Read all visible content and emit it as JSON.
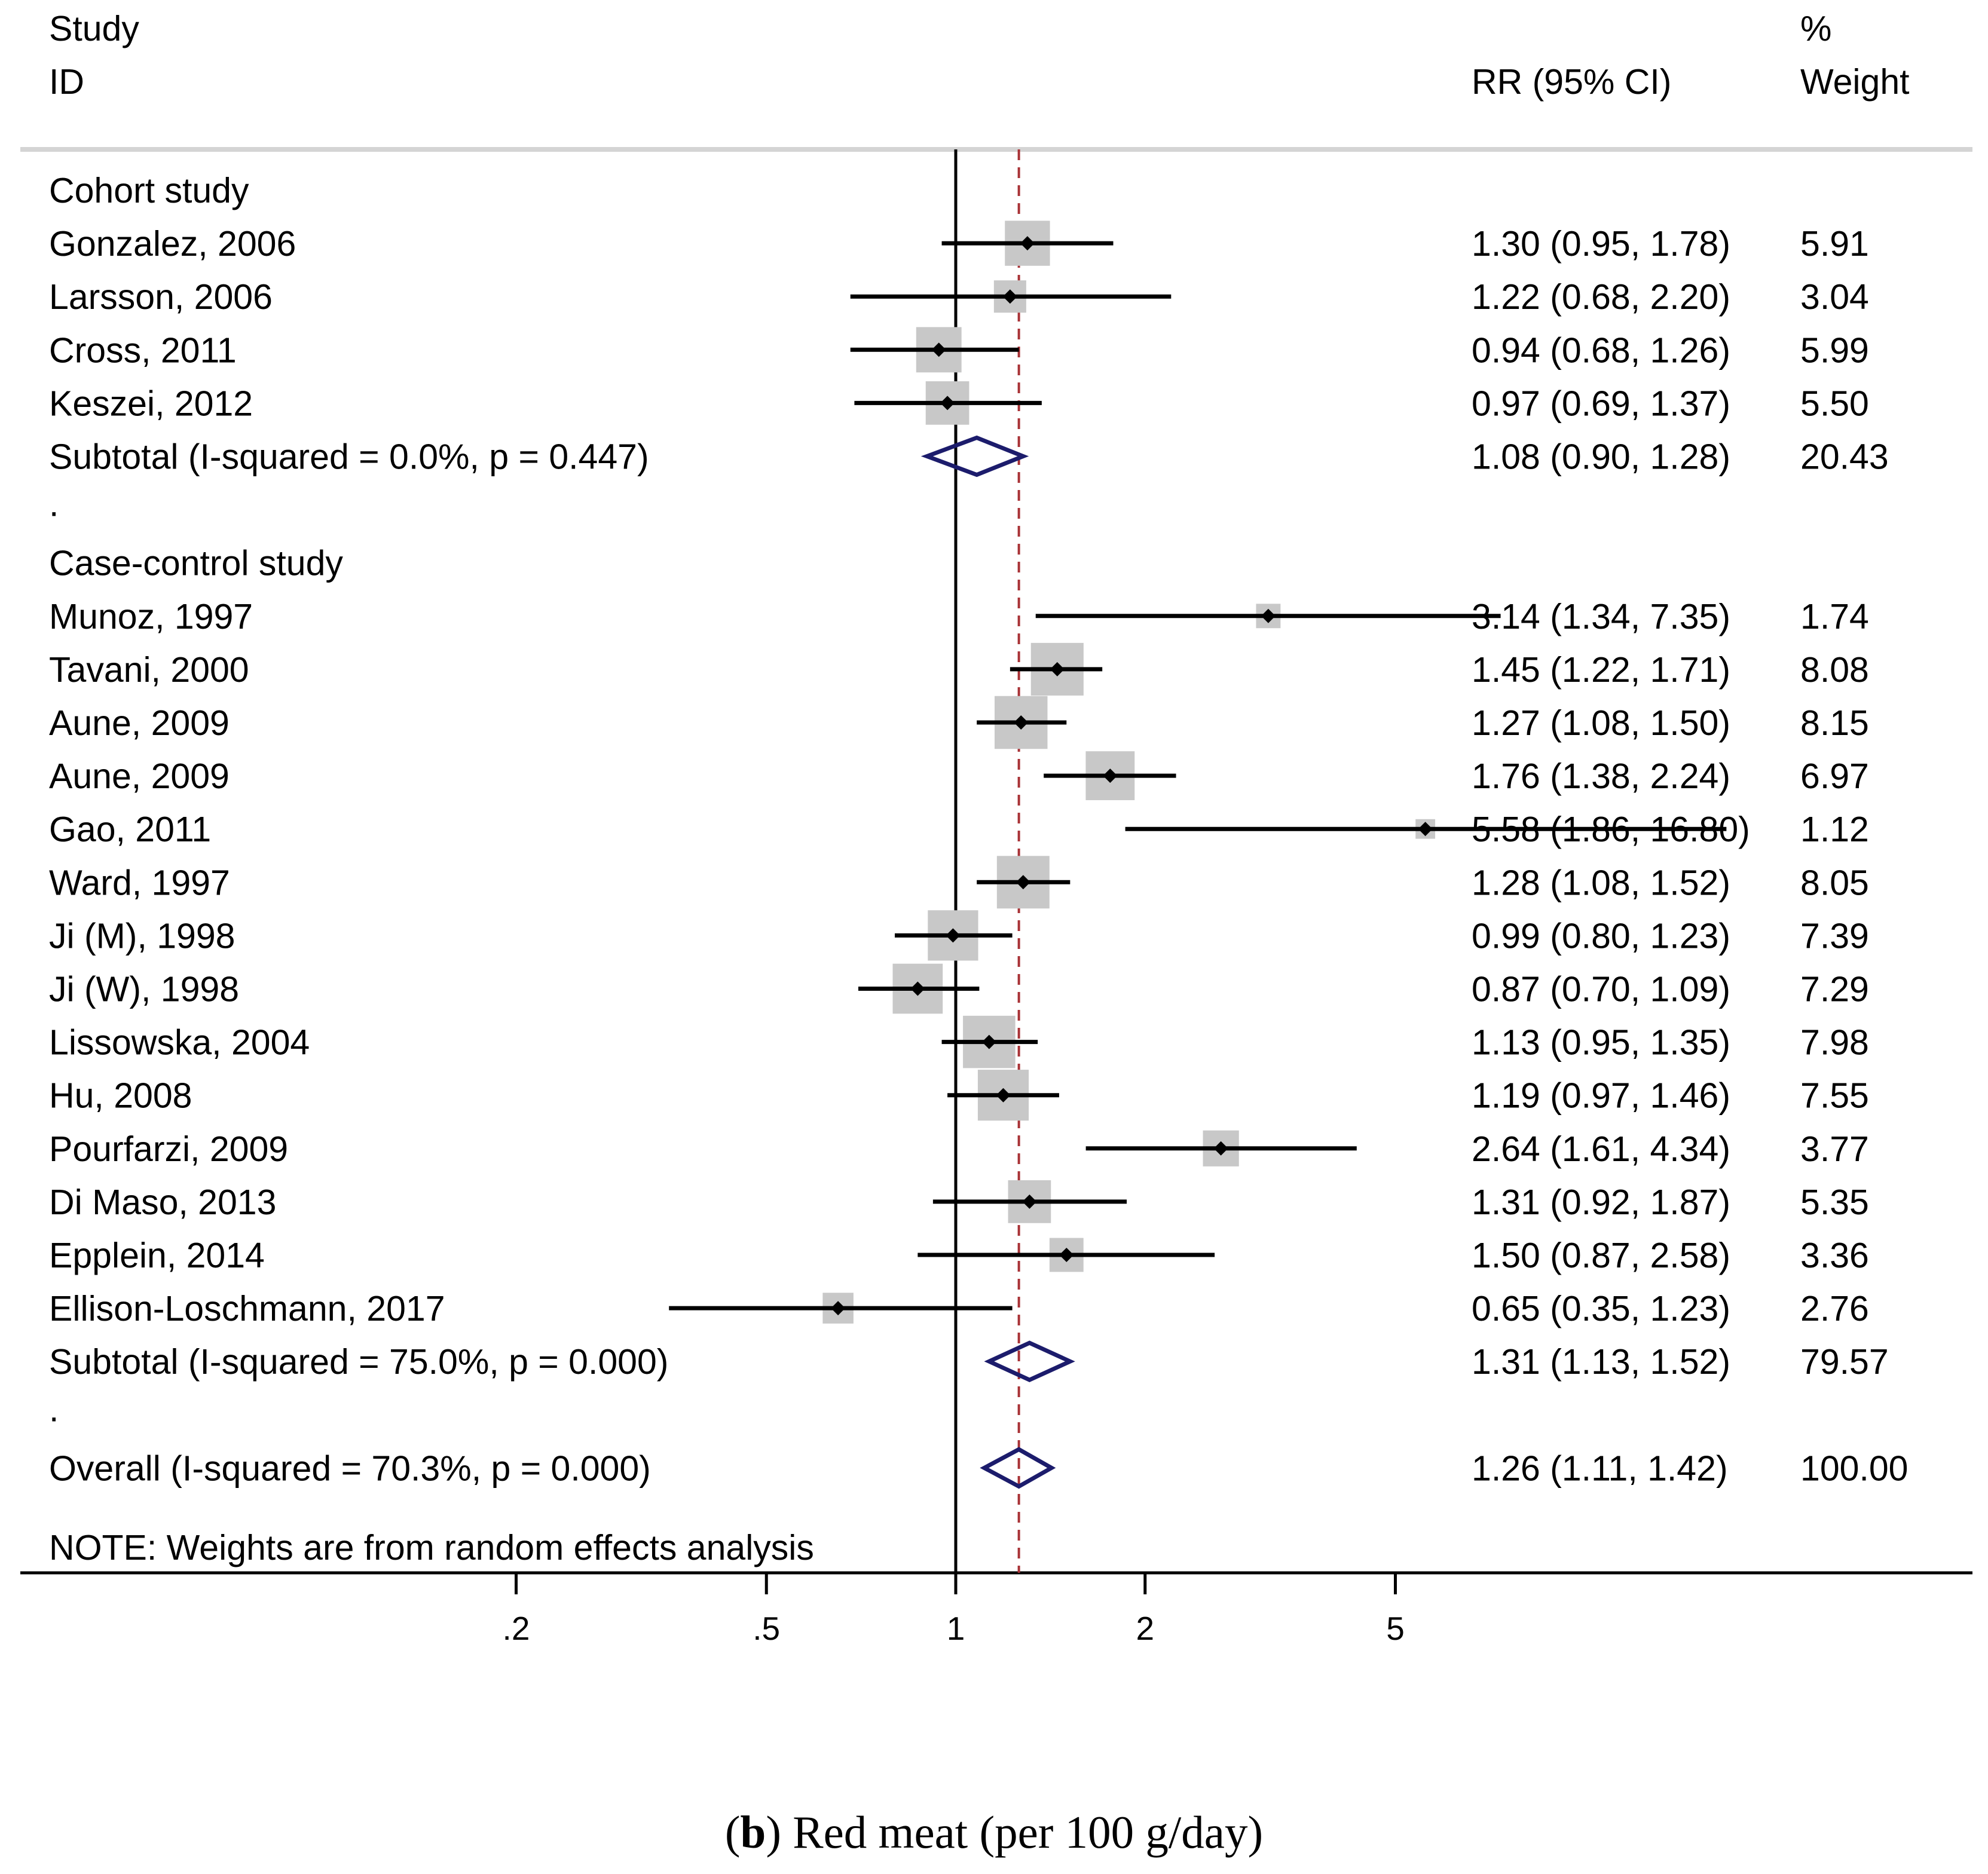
{
  "chart_data": {
    "type": "forest",
    "header": {
      "study_line1": "Study",
      "study_line2": "ID",
      "rr": "RR (95% CI)",
      "weight_line1": "%",
      "weight_line2": "Weight"
    },
    "x_scale": "log",
    "x_ticks": [
      {
        "value": 0.2,
        "label": ".2"
      },
      {
        "value": 0.5,
        "label": ".5"
      },
      {
        "value": 1,
        "label": "1"
      },
      {
        "value": 2,
        "label": "2"
      },
      {
        "value": 5,
        "label": "5"
      }
    ],
    "null_line": 1,
    "overall_line": 1.26,
    "rows": [
      {
        "kind": "group",
        "label": "Cohort study"
      },
      {
        "kind": "study",
        "label": "Gonzalez, 2006",
        "rr": 1.3,
        "lo": 0.95,
        "hi": 1.78,
        "ci_text": "1.30 (0.95, 1.78)",
        "weight": "5.91"
      },
      {
        "kind": "study",
        "label": "Larsson, 2006",
        "rr": 1.22,
        "lo": 0.68,
        "hi": 2.2,
        "ci_text": "1.22 (0.68, 2.20)",
        "weight": "3.04"
      },
      {
        "kind": "study",
        "label": "Cross, 2011",
        "rr": 0.94,
        "lo": 0.68,
        "hi": 1.26,
        "ci_text": "0.94 (0.68, 1.26)",
        "weight": "5.99"
      },
      {
        "kind": "study",
        "label": "Keszei, 2012",
        "rr": 0.97,
        "lo": 0.69,
        "hi": 1.37,
        "ci_text": "0.97 (0.69, 1.37)",
        "weight": "5.50"
      },
      {
        "kind": "subtotal",
        "label": "Subtotal  (I-squared = 0.0%, p = 0.447)",
        "rr": 1.08,
        "lo": 0.9,
        "hi": 1.28,
        "ci_text": "1.08 (0.90, 1.28)",
        "weight": "20.43"
      },
      {
        "kind": "spacer",
        "label": "."
      },
      {
        "kind": "group",
        "label": "Case-control study"
      },
      {
        "kind": "study",
        "label": "Munoz, 1997",
        "rr": 3.14,
        "lo": 1.34,
        "hi": 7.35,
        "ci_text": "3.14 (1.34, 7.35)",
        "weight": "1.74"
      },
      {
        "kind": "study",
        "label": "Tavani, 2000",
        "rr": 1.45,
        "lo": 1.22,
        "hi": 1.71,
        "ci_text": "1.45 (1.22, 1.71)",
        "weight": "8.08"
      },
      {
        "kind": "study",
        "label": "Aune, 2009",
        "rr": 1.27,
        "lo": 1.08,
        "hi": 1.5,
        "ci_text": "1.27 (1.08, 1.50)",
        "weight": "8.15"
      },
      {
        "kind": "study",
        "label": "Aune, 2009",
        "rr": 1.76,
        "lo": 1.38,
        "hi": 2.24,
        "ci_text": "1.76 (1.38, 2.24)",
        "weight": "6.97"
      },
      {
        "kind": "study",
        "label": "Gao, 2011",
        "rr": 5.58,
        "lo": 1.86,
        "hi": 16.8,
        "ci_text": "5.58 (1.86, 16.80)",
        "weight": "1.12"
      },
      {
        "kind": "study",
        "label": "Ward, 1997",
        "rr": 1.28,
        "lo": 1.08,
        "hi": 1.52,
        "ci_text": "1.28 (1.08, 1.52)",
        "weight": "8.05"
      },
      {
        "kind": "study",
        "label": "Ji (M), 1998",
        "rr": 0.99,
        "lo": 0.8,
        "hi": 1.23,
        "ci_text": "0.99 (0.80, 1.23)",
        "weight": "7.39"
      },
      {
        "kind": "study",
        "label": "Ji (W), 1998",
        "rr": 0.87,
        "lo": 0.7,
        "hi": 1.09,
        "ci_text": "0.87 (0.70, 1.09)",
        "weight": "7.29"
      },
      {
        "kind": "study",
        "label": "Lissowska, 2004",
        "rr": 1.13,
        "lo": 0.95,
        "hi": 1.35,
        "ci_text": "1.13 (0.95, 1.35)",
        "weight": "7.98"
      },
      {
        "kind": "study",
        "label": "Hu, 2008",
        "rr": 1.19,
        "lo": 0.97,
        "hi": 1.46,
        "ci_text": "1.19 (0.97, 1.46)",
        "weight": "7.55"
      },
      {
        "kind": "study",
        "label": "Pourfarzi, 2009",
        "rr": 2.64,
        "lo": 1.61,
        "hi": 4.34,
        "ci_text": "2.64 (1.61, 4.34)",
        "weight": "3.77"
      },
      {
        "kind": "study",
        "label": "Di Maso, 2013",
        "rr": 1.31,
        "lo": 0.92,
        "hi": 1.87,
        "ci_text": "1.31 (0.92, 1.87)",
        "weight": "5.35"
      },
      {
        "kind": "study",
        "label": "Epplein, 2014",
        "rr": 1.5,
        "lo": 0.87,
        "hi": 2.58,
        "ci_text": "1.50 (0.87, 2.58)",
        "weight": "3.36"
      },
      {
        "kind": "study",
        "label": "Ellison-Loschmann, 2017",
        "rr": 0.65,
        "lo": 0.35,
        "hi": 1.23,
        "ci_text": "0.65 (0.35, 1.23)",
        "weight": "2.76"
      },
      {
        "kind": "subtotal",
        "label": "Subtotal  (I-squared = 75.0%, p = 0.000)",
        "rr": 1.31,
        "lo": 1.13,
        "hi": 1.52,
        "ci_text": "1.31 (1.13, 1.52)",
        "weight": "79.57"
      },
      {
        "kind": "spacer",
        "label": "."
      },
      {
        "kind": "subtotal",
        "label": "Overall  (I-squared = 70.3%, p = 0.000)",
        "rr": 1.26,
        "lo": 1.11,
        "hi": 1.42,
        "ci_text": "1.26 (1.11, 1.42)",
        "weight": "100.00"
      }
    ],
    "note": "NOTE: Weights are from random effects analysis",
    "caption_bold": "b",
    "caption_rest": "Red meat (per 100 g/day)",
    "colors": {
      "diamond": "#1c1c6c",
      "overall_line": "#a83236",
      "box": "#c8c8c8",
      "ci": "#000000",
      "separator": "#d4d4d4"
    }
  }
}
